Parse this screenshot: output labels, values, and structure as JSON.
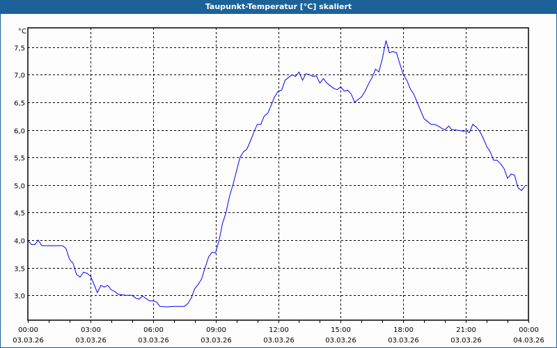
{
  "window": {
    "title": "Taupunkt-Temperatur [°C] skaliert"
  },
  "chart_data": {
    "type": "line",
    "title": "Taupunkt-Temperatur [°C] skaliert",
    "ylabel": "°C",
    "xlabel": "",
    "ylim": [
      2.55,
      7.85
    ],
    "xlim": [
      0,
      24
    ],
    "grid": true,
    "yticks": [
      {
        "v": 3.0,
        "label": "3,0"
      },
      {
        "v": 3.5,
        "label": "3,5"
      },
      {
        "v": 4.0,
        "label": "4,0"
      },
      {
        "v": 4.5,
        "label": "4,5"
      },
      {
        "v": 5.0,
        "label": "5,0"
      },
      {
        "v": 5.5,
        "label": "5,5"
      },
      {
        "v": 6.0,
        "label": "6,0"
      },
      {
        "v": 6.5,
        "label": "6,5"
      },
      {
        "v": 7.0,
        "label": "7,0"
      },
      {
        "v": 7.5,
        "label": "7,5"
      }
    ],
    "xticks": [
      {
        "v": 0,
        "time": "00:00",
        "date": "03.03.26"
      },
      {
        "v": 3,
        "time": "03:00",
        "date": "03.03.26"
      },
      {
        "v": 6,
        "time": "06:00",
        "date": "03.03.26"
      },
      {
        "v": 9,
        "time": "09:00",
        "date": "03.03.26"
      },
      {
        "v": 12,
        "time": "12:00",
        "date": "03.03.26"
      },
      {
        "v": 15,
        "time": "15:00",
        "date": "03.03.26"
      },
      {
        "v": 18,
        "time": "18:00",
        "date": "03.03.26"
      },
      {
        "v": 21,
        "time": "21:00",
        "date": "03.03.26"
      },
      {
        "v": 24,
        "time": "00:00",
        "date": "04.03.26"
      }
    ],
    "series": [
      {
        "name": "Taupunkt-Temperatur",
        "color": "#0000ff",
        "x": [
          0,
          0.17,
          0.33,
          0.5,
          0.67,
          1,
          1.33,
          1.67,
          1.83,
          2,
          2.17,
          2.33,
          2.5,
          2.67,
          2.83,
          3,
          3.17,
          3.33,
          3.5,
          3.67,
          3.83,
          4,
          4.17,
          4.33,
          4.67,
          5,
          5.17,
          5.33,
          5.5,
          5.67,
          5.83,
          6,
          6.17,
          6.33,
          6.67,
          7,
          7.5,
          7.67,
          7.83,
          8,
          8.17,
          8.33,
          8.5,
          8.67,
          8.83,
          9,
          9.17,
          9.33,
          9.5,
          9.67,
          9.83,
          10,
          10.17,
          10.33,
          10.5,
          10.67,
          10.83,
          11,
          11.17,
          11.33,
          11.5,
          11.67,
          11.83,
          12,
          12.17,
          12.33,
          12.5,
          12.67,
          12.83,
          13,
          13.17,
          13.33,
          13.5,
          13.67,
          13.83,
          14,
          14.17,
          14.33,
          14.5,
          14.67,
          14.83,
          15,
          15.17,
          15.33,
          15.5,
          15.67,
          15.83,
          16,
          16.17,
          16.33,
          16.5,
          16.67,
          16.83,
          17,
          17.17,
          17.33,
          17.5,
          17.67,
          17.83,
          18,
          18.17,
          18.33,
          18.5,
          18.67,
          18.83,
          19,
          19.17,
          19.33,
          19.5,
          19.67,
          19.83,
          20,
          20.17,
          20.33,
          20.5,
          20.67,
          20.83,
          21,
          21.17,
          21.33,
          21.5,
          21.67,
          21.83,
          22,
          22.17,
          22.33,
          22.5,
          22.67,
          22.83,
          23,
          23.17,
          23.33,
          23.5,
          23.67,
          23.83
        ],
        "y": [
          4.0,
          3.92,
          3.92,
          4.0,
          3.9,
          3.9,
          3.9,
          3.9,
          3.85,
          3.65,
          3.58,
          3.38,
          3.33,
          3.42,
          3.4,
          3.35,
          3.2,
          3.05,
          3.18,
          3.15,
          3.18,
          3.1,
          3.07,
          3.02,
          3.0,
          3.0,
          2.95,
          2.93,
          2.99,
          2.94,
          2.9,
          2.9,
          2.88,
          2.8,
          2.79,
          2.8,
          2.8,
          2.85,
          2.95,
          3.12,
          3.2,
          3.3,
          3.5,
          3.7,
          3.78,
          3.77,
          4.0,
          4.3,
          4.5,
          4.8,
          5.0,
          5.25,
          5.5,
          5.6,
          5.65,
          5.8,
          5.95,
          6.1,
          6.1,
          6.25,
          6.3,
          6.45,
          6.6,
          6.7,
          6.72,
          6.9,
          6.95,
          7.0,
          6.97,
          7.05,
          6.9,
          7.02,
          7.0,
          6.97,
          6.98,
          6.85,
          6.93,
          6.85,
          6.8,
          6.75,
          6.73,
          6.78,
          6.7,
          6.72,
          6.65,
          6.5,
          6.55,
          6.6,
          6.7,
          6.83,
          6.95,
          7.1,
          7.05,
          7.3,
          7.62,
          7.4,
          7.42,
          7.4,
          7.2,
          7.0,
          6.9,
          6.75,
          6.65,
          6.5,
          6.35,
          6.2,
          6.15,
          6.1,
          6.1,
          6.07,
          6.03,
          6.0,
          6.07,
          6.0,
          6.0,
          5.99,
          5.98,
          5.98,
          5.95,
          6.1,
          6.05,
          5.97,
          5.85,
          5.7,
          5.6,
          5.45,
          5.45,
          5.38,
          5.3,
          5.12,
          5.2,
          5.18,
          4.95,
          4.9,
          4.98
        ]
      }
    ]
  }
}
